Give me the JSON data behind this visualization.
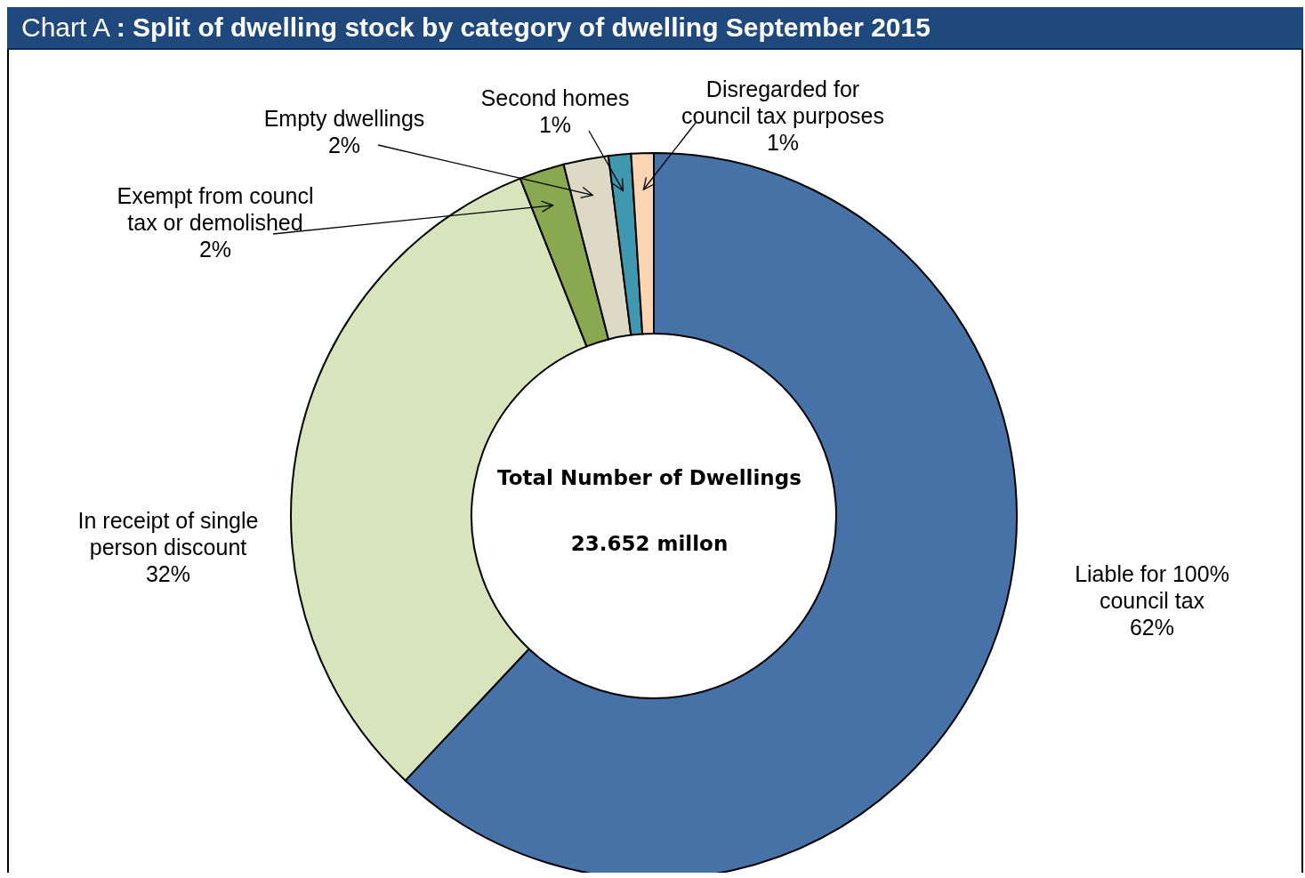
{
  "chart_data": {
    "type": "donut",
    "title": "Chart A : Split of dwelling stock by category of dwelling September 2015",
    "categories": [
      "Liable for 100% council tax",
      "In receipt of single person discount",
      "Exempt from councl tax or demolished",
      "Empty dwellings",
      "Second homes",
      "Disregarded for council tax purposes"
    ],
    "values": [
      62,
      32,
      2,
      2,
      1,
      1
    ],
    "colors": [
      "#4672a8",
      "#d8e4bc",
      "#8aa84f",
      "#ddd9c4",
      "#3f98b0",
      "#fcd5b5"
    ],
    "value_labels": [
      "62%",
      "32%",
      "2%",
      "2%",
      "1%",
      "1%"
    ],
    "annotations": [
      "Total Number of Dwellings",
      "23.652 millon"
    ],
    "legend": false
  }
}
